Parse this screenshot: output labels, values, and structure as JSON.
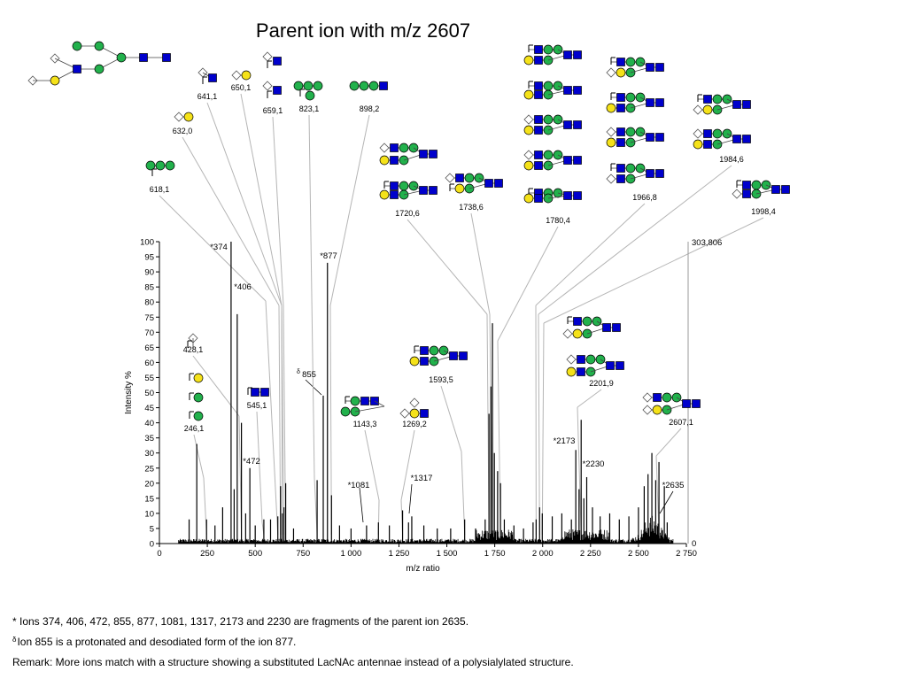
{
  "chart_data": {
    "type": "line",
    "title": "Parent ion with m/z 2607",
    "xlabel": "m/z ratio",
    "ylabel": "Intensity %",
    "xlim": [
      0,
      2750
    ],
    "ylim": [
      0,
      100
    ],
    "x_ticks": [
      0,
      250,
      500,
      750,
      1000,
      1250,
      1500,
      1750,
      2000,
      2250,
      2500,
      2750
    ],
    "x_tick_labels": [
      "0",
      "250",
      "500",
      "750",
      "1 000",
      "1 250",
      "1 500",
      "1 750",
      "2 000",
      "2 250",
      "2 500",
      "2 750"
    ],
    "y_ticks": [
      0,
      5,
      10,
      15,
      20,
      25,
      30,
      35,
      40,
      45,
      50,
      55,
      60,
      65,
      70,
      75,
      80,
      85,
      90,
      95,
      100
    ],
    "right_axis_labels": {
      "top": "303,806",
      "bottom": "0"
    },
    "grid": false,
    "series": [
      {
        "peaks": [
          {
            "mz": 155,
            "i": 8
          },
          {
            "mz": 195,
            "i": 33
          },
          {
            "mz": 246,
            "i": 8
          },
          {
            "mz": 290,
            "i": 6
          },
          {
            "mz": 330,
            "i": 12
          },
          {
            "mz": 374,
            "i": 100
          },
          {
            "mz": 390,
            "i": 18
          },
          {
            "mz": 406,
            "i": 76
          },
          {
            "mz": 428,
            "i": 40
          },
          {
            "mz": 450,
            "i": 10
          },
          {
            "mz": 472,
            "i": 25
          },
          {
            "mz": 500,
            "i": 6
          },
          {
            "mz": 545,
            "i": 8
          },
          {
            "mz": 580,
            "i": 8
          },
          {
            "mz": 618,
            "i": 9
          },
          {
            "mz": 632,
            "i": 19
          },
          {
            "mz": 641,
            "i": 10
          },
          {
            "mz": 650,
            "i": 12
          },
          {
            "mz": 659,
            "i": 20
          },
          {
            "mz": 700,
            "i": 5
          },
          {
            "mz": 823,
            "i": 21
          },
          {
            "mz": 855,
            "i": 49
          },
          {
            "mz": 877,
            "i": 93
          },
          {
            "mz": 898,
            "i": 16
          },
          {
            "mz": 940,
            "i": 6
          },
          {
            "mz": 1000,
            "i": 5
          },
          {
            "mz": 1081,
            "i": 6
          },
          {
            "mz": 1143,
            "i": 7
          },
          {
            "mz": 1200,
            "i": 6
          },
          {
            "mz": 1269,
            "i": 11
          },
          {
            "mz": 1300,
            "i": 7
          },
          {
            "mz": 1317,
            "i": 9
          },
          {
            "mz": 1380,
            "i": 6
          },
          {
            "mz": 1450,
            "i": 5
          },
          {
            "mz": 1520,
            "i": 5
          },
          {
            "mz": 1593,
            "i": 8
          },
          {
            "mz": 1650,
            "i": 5
          },
          {
            "mz": 1700,
            "i": 8
          },
          {
            "mz": 1720,
            "i": 43
          },
          {
            "mz": 1730,
            "i": 52
          },
          {
            "mz": 1738,
            "i": 73
          },
          {
            "mz": 1748,
            "i": 30
          },
          {
            "mz": 1765,
            "i": 24
          },
          {
            "mz": 1780,
            "i": 20
          },
          {
            "mz": 1800,
            "i": 8
          },
          {
            "mz": 1850,
            "i": 6
          },
          {
            "mz": 1900,
            "i": 5
          },
          {
            "mz": 1950,
            "i": 7
          },
          {
            "mz": 1966,
            "i": 8
          },
          {
            "mz": 1984,
            "i": 12
          },
          {
            "mz": 1998,
            "i": 10
          },
          {
            "mz": 2050,
            "i": 9
          },
          {
            "mz": 2100,
            "i": 10
          },
          {
            "mz": 2150,
            "i": 8
          },
          {
            "mz": 2173,
            "i": 31
          },
          {
            "mz": 2190,
            "i": 18
          },
          {
            "mz": 2201,
            "i": 41
          },
          {
            "mz": 2215,
            "i": 15
          },
          {
            "mz": 2230,
            "i": 22
          },
          {
            "mz": 2260,
            "i": 12
          },
          {
            "mz": 2300,
            "i": 9
          },
          {
            "mz": 2350,
            "i": 10
          },
          {
            "mz": 2400,
            "i": 8
          },
          {
            "mz": 2450,
            "i": 9
          },
          {
            "mz": 2500,
            "i": 12
          },
          {
            "mz": 2530,
            "i": 19
          },
          {
            "mz": 2550,
            "i": 23
          },
          {
            "mz": 2570,
            "i": 30
          },
          {
            "mz": 2590,
            "i": 21
          },
          {
            "mz": 2607,
            "i": 27
          },
          {
            "mz": 2635,
            "i": 19
          },
          {
            "mz": 2650,
            "i": 7
          }
        ]
      }
    ],
    "annotations": [
      {
        "text": "*374",
        "mz": 374,
        "i": 100
      },
      {
        "text": "*406",
        "mz": 406,
        "i": 76
      },
      {
        "text": "*472",
        "mz": 472,
        "i": 25
      },
      {
        "text": "*877",
        "mz": 877,
        "i": 93
      },
      {
        "text": "855",
        "mz": 855,
        "i": 49,
        "prefix": "δ"
      },
      {
        "text": "*1081",
        "mz": 1081,
        "i": 6
      },
      {
        "text": "*1317",
        "mz": 1317,
        "i": 9
      },
      {
        "text": "*2173",
        "mz": 2173,
        "i": 31
      },
      {
        "text": "*2230",
        "mz": 2230,
        "i": 22
      },
      {
        "text": "*2635",
        "mz": 2635,
        "i": 19
      }
    ],
    "structure_labels": [
      {
        "text": "618,1",
        "mz": 618
      },
      {
        "text": "632,0",
        "mz": 632
      },
      {
        "text": "641,1",
        "mz": 641
      },
      {
        "text": "650,1",
        "mz": 650
      },
      {
        "text": "659,1",
        "mz": 659
      },
      {
        "text": "823,1",
        "mz": 823
      },
      {
        "text": "898,2",
        "mz": 898
      },
      {
        "text": "428,1",
        "mz": 428
      },
      {
        "text": "246,1",
        "mz": 246
      },
      {
        "text": "545,1",
        "mz": 545
      },
      {
        "text": "1143,3",
        "mz": 1143
      },
      {
        "text": "1269,2",
        "mz": 1269
      },
      {
        "text": "1593,5",
        "mz": 1593
      },
      {
        "text": "1720,6",
        "mz": 1720
      },
      {
        "text": "1738,6",
        "mz": 1738
      },
      {
        "text": "1780,4",
        "mz": 1780
      },
      {
        "text": "1966,8",
        "mz": 1966
      },
      {
        "text": "1984,6",
        "mz": 1984
      },
      {
        "text": "1998,4",
        "mz": 1998
      },
      {
        "text": "2201,9",
        "mz": 2201
      },
      {
        "text": "2607,1",
        "mz": 2607
      }
    ]
  },
  "footnotes": {
    "line1": "* Ions 374, 406, 472, 855, 877, 1081, 1317, 2173 and 2230 are fragments of the parent ion 2635.",
    "line2_symbol": "δ",
    "line2": "Ion 855 is a protonated and desodiated form of the ion 877.",
    "line3": "Remark: More ions match with a structure showing a substituted LacNAc antennae instead of a polysialylated structure."
  }
}
